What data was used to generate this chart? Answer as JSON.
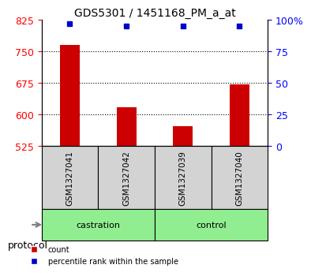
{
  "title": "GDS5301 / 1451168_PM_a_at",
  "samples": [
    "GSM1327041",
    "GSM1327042",
    "GSM1327039",
    "GSM1327040"
  ],
  "groups": [
    "castration",
    "castration",
    "control",
    "control"
  ],
  "red_values": [
    765,
    618,
    572,
    672
  ],
  "blue_values": [
    97,
    95,
    95,
    95
  ],
  "ylim_left": [
    525,
    825
  ],
  "ylim_right": [
    0,
    100
  ],
  "yticks_left": [
    525,
    600,
    675,
    750,
    825
  ],
  "yticks_right": [
    0,
    25,
    50,
    75,
    100
  ],
  "ytick_labels_right": [
    "0",
    "25",
    "50",
    "75",
    "100%"
  ],
  "bar_width": 0.35,
  "group_colors": {
    "castration": "#90EE90",
    "control": "#90EE90"
  },
  "bar_color": "#CC0000",
  "dot_color": "#0000CC",
  "grid_color": "black",
  "label_bg_color": "#D3D3D3",
  "protocol_label": "protocol",
  "castration_label": "castration",
  "control_label": "control"
}
